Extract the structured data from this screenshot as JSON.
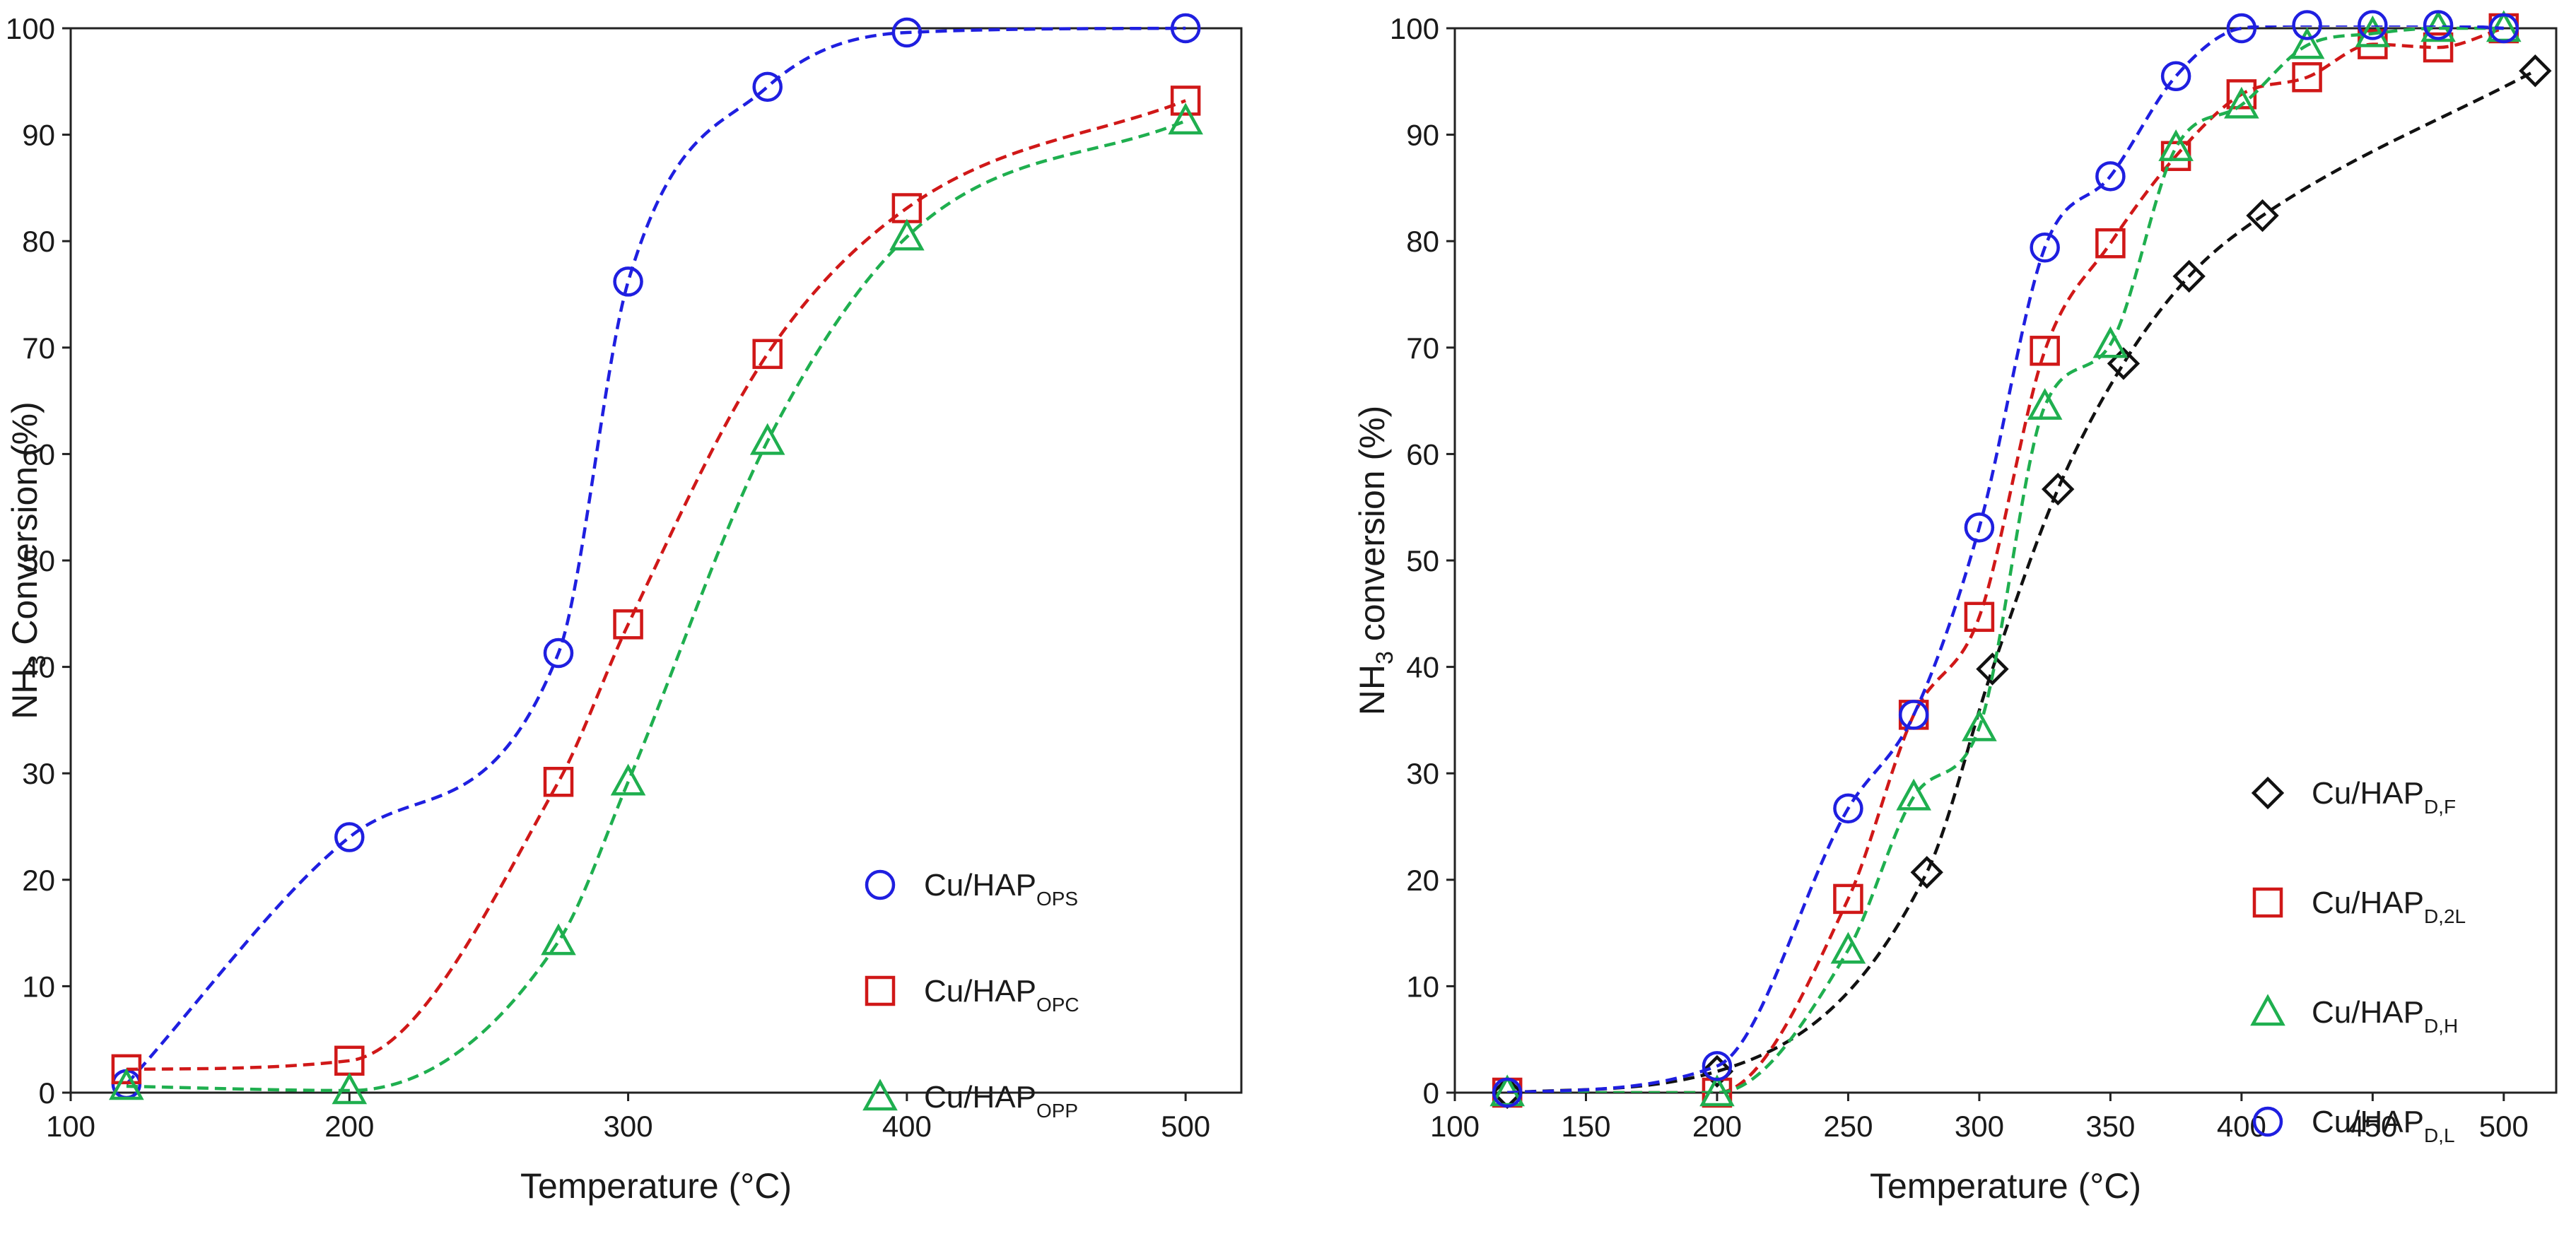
{
  "chart_data": [
    {
      "type": "scatter",
      "title": "",
      "xlabel": "Temperature (°C)",
      "ylabel_main": "NH",
      "ylabel_sub": "3",
      "ylabel_rest": " Conversion  (%)",
      "xlim": [
        100,
        520
      ],
      "ylim": [
        0,
        100
      ],
      "xticks": [
        100,
        200,
        300,
        400,
        500
      ],
      "yticks": [
        0,
        10,
        20,
        30,
        40,
        50,
        60,
        70,
        80,
        90,
        100
      ],
      "legend_position": "bottom-right",
      "series": [
        {
          "name": "Cu/HAP",
          "name_sub": "OPS",
          "color": "#1f1fe0",
          "marker": "circle",
          "x": [
            120,
            200,
            275,
            300,
            350,
            400,
            500
          ],
          "y": [
            0.8,
            24.0,
            41.3,
            76.2,
            94.5,
            99.6,
            100.0
          ],
          "fit_line": "dashed"
        },
        {
          "name": "Cu/HAP",
          "name_sub": "OPC",
          "color": "#d01818",
          "marker": "square",
          "x": [
            120,
            200,
            275,
            300,
            350,
            400,
            500
          ],
          "y": [
            2.2,
            3.0,
            29.2,
            44.0,
            69.4,
            83.1,
            93.2
          ],
          "fit_line": "dashed"
        },
        {
          "name": "Cu/HAP",
          "name_sub": "OPP",
          "color": "#1faf4f",
          "marker": "triangle",
          "x": [
            120,
            200,
            275,
            300,
            350,
            400,
            500
          ],
          "y": [
            0.6,
            0.2,
            14.2,
            29.2,
            61.2,
            80.4,
            91.3
          ],
          "fit_line": "dashed"
        }
      ]
    },
    {
      "type": "scatter",
      "title": "",
      "xlabel": "Temperature (°C)",
      "ylabel_main": "NH",
      "ylabel_sub": "3",
      "ylabel_rest": " conversion  (%)",
      "xlim": [
        100,
        520
      ],
      "ylim": [
        0,
        100
      ],
      "xticks": [
        100,
        150,
        200,
        250,
        300,
        350,
        400,
        450,
        500
      ],
      "yticks": [
        0,
        10,
        20,
        30,
        40,
        50,
        60,
        70,
        80,
        90,
        100
      ],
      "legend_position": "bottom-right",
      "series": [
        {
          "name": "Cu/HAP",
          "name_sub": "D,F",
          "color": "#111111",
          "marker": "diamond",
          "x": [
            120,
            200,
            280,
            305,
            330,
            355,
            380,
            408,
            512
          ],
          "y": [
            0.0,
            2.0,
            20.7,
            39.8,
            56.7,
            68.5,
            76.7,
            82.4,
            96.0
          ],
          "fit_line": "dashed"
        },
        {
          "name": "Cu/HAP",
          "name_sub": "D,2L",
          "color": "#d01818",
          "marker": "square",
          "x": [
            120,
            200,
            250,
            275,
            300,
            325,
            350,
            375,
            400,
            425,
            450,
            475,
            500
          ],
          "y": [
            0.0,
            0.0,
            18.2,
            35.5,
            44.7,
            69.7,
            79.8,
            88.0,
            93.8,
            95.4,
            98.5,
            98.2,
            100.0
          ],
          "fit_line": "dashed"
        },
        {
          "name": "Cu/HAP",
          "name_sub": "D,H",
          "color": "#1faf4f",
          "marker": "triangle",
          "x": [
            120,
            200,
            250,
            275,
            300,
            325,
            350,
            375,
            400,
            425,
            450,
            475,
            500
          ],
          "y": [
            0.0,
            0.0,
            13.4,
            27.8,
            34.3,
            64.5,
            70.3,
            88.8,
            92.8,
            98.4,
            99.5,
            100.0,
            100.0
          ],
          "fit_line": "dashed"
        },
        {
          "name": "Cu/HAP",
          "name_sub": "D,L",
          "color": "#1f1fe0",
          "marker": "circle",
          "x": [
            120,
            200,
            250,
            275,
            300,
            325,
            350,
            375,
            400,
            425,
            450,
            475,
            500
          ],
          "y": [
            0.0,
            2.5,
            26.7,
            35.5,
            53.1,
            79.4,
            86.1,
            95.5,
            100.0,
            100.3,
            100.3,
            100.3,
            100.0
          ],
          "fit_line": "dashed"
        }
      ]
    }
  ]
}
